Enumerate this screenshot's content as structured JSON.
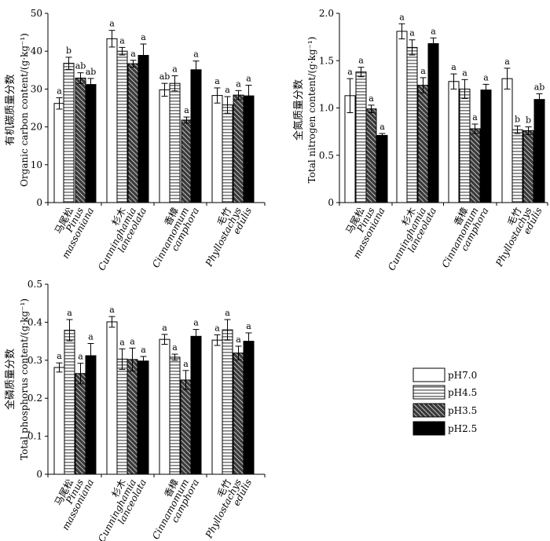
{
  "legend": [
    {
      "label": "pH7.0"
    },
    {
      "label": "pH4.5"
    },
    {
      "label": "pH3.5"
    },
    {
      "label": "pH2.5"
    }
  ],
  "colors": {
    "bar_stroke": "#000000",
    "hatch": "#222222",
    "ph25_fill": "#000000",
    "ph35_fill": "#555555",
    "ph45_fill": "#999999"
  },
  "categories": [
    {
      "cn": "马尾松",
      "en1": "Pinus",
      "en2": "massoniana"
    },
    {
      "cn": "杉木",
      "en1": "Cunninghamia",
      "en2": "lanceolata"
    },
    {
      "cn": "香樟",
      "en1": "Cinnamomum",
      "en2": "camphora"
    },
    {
      "cn": "毛竹",
      "en1": "Phyllostachys",
      "en2": "edulis"
    }
  ],
  "chart_data": [
    {
      "type": "bar",
      "title": "",
      "ylabel_cn": "有机碳质量分数",
      "ylabel_en": "Organic carbon content/(g·kg⁻¹)",
      "ylim": [
        0,
        50
      ],
      "yticks": [
        0,
        10,
        20,
        30,
        40,
        50
      ],
      "ytick_labels": [
        "0",
        "10",
        "20",
        "30",
        "40",
        "50"
      ],
      "categories": [
        "马尾松 Pinus massoniana",
        "杉木 Cunninghamia lanceolata",
        "香樟 Cinnamomum camphora",
        "毛竹 Phyllostachys edulis"
      ],
      "series": [
        {
          "name": "pH7.0",
          "values": [
            26.2,
            43.3,
            29.8,
            28.3
          ],
          "errors": [
            1.5,
            2.2,
            1.7,
            2.0
          ],
          "sig": [
            "a",
            "a",
            "ab",
            "a"
          ]
        },
        {
          "name": "pH4.5",
          "values": [
            36.8,
            40.0,
            31.5,
            25.8
          ],
          "errors": [
            1.6,
            1.0,
            2.0,
            2.2
          ],
          "sig": [
            "b",
            "a",
            "a",
            "a"
          ]
        },
        {
          "name": "pH3.5",
          "values": [
            32.9,
            36.7,
            21.8,
            28.4
          ],
          "errors": [
            1.4,
            0.9,
            0.8,
            1.2
          ],
          "sig": [
            "ab",
            "a",
            "a",
            "a"
          ]
        },
        {
          "name": "pH2.5",
          "values": [
            31.2,
            38.9,
            35.1,
            28.2
          ],
          "errors": [
            1.6,
            3.0,
            2.3,
            2.8
          ],
          "sig": [
            "ab",
            "a",
            "a",
            "a"
          ]
        }
      ]
    },
    {
      "type": "bar",
      "title": "",
      "ylabel_cn": "全氮质量分数",
      "ylabel_en": "Total nitrogen content/(g·kg⁻¹)",
      "ylim": [
        0,
        2.0
      ],
      "yticks": [
        0,
        0.5,
        1.0,
        1.5,
        2.0
      ],
      "ytick_labels": [
        "0",
        "0.5",
        "1.0",
        "1.5",
        "2.0"
      ],
      "categories": [
        "马尾松 Pinus massoniana",
        "杉木 Cunninghamia lanceolata",
        "香樟 Cinnamomum camphora",
        "毛竹 Phyllostachys edulis"
      ],
      "series": [
        {
          "name": "pH7.0",
          "values": [
            1.13,
            1.81,
            1.28,
            1.31
          ],
          "errors": [
            0.18,
            0.08,
            0.08,
            0.11
          ],
          "sig": [
            "a",
            "a",
            "a",
            "a"
          ]
        },
        {
          "name": "pH4.5",
          "values": [
            1.38,
            1.64,
            1.2,
            0.77
          ],
          "errors": [
            0.05,
            0.08,
            0.1,
            0.04
          ],
          "sig": [
            "a",
            "a",
            "a",
            "b"
          ]
        },
        {
          "name": "pH3.5",
          "values": [
            0.99,
            1.24,
            0.78,
            0.76
          ],
          "errors": [
            0.04,
            0.08,
            0.05,
            0.04
          ],
          "sig": [
            "a",
            "a",
            "a",
            "b"
          ]
        },
        {
          "name": "pH2.5",
          "values": [
            0.71,
            1.68,
            1.19,
            1.09
          ],
          "errors": [
            0.02,
            0.06,
            0.06,
            0.06
          ],
          "sig": [
            "a",
            "a",
            "a",
            "ab"
          ]
        }
      ]
    },
    {
      "type": "bar",
      "title": "",
      "ylabel_cn": "全磷质量分数",
      "ylabel_en": "Total phosphorus content/(g·kg⁻¹)",
      "ylim": [
        0,
        0.5
      ],
      "yticks": [
        0,
        0.1,
        0.2,
        0.3,
        0.4,
        0.5
      ],
      "ytick_labels": [
        "0",
        "0.1",
        "0.2",
        "0.3",
        "0.4",
        "0.5"
      ],
      "categories": [
        "马尾松 Pinus massoniana",
        "杉木 Cunninghamia lanceolata",
        "香樟 Cinnamomum camphora",
        "毛竹 Phyllostachys edulis"
      ],
      "series": [
        {
          "name": "pH7.0",
          "values": [
            0.281,
            0.401,
            0.355,
            0.353
          ],
          "errors": [
            0.012,
            0.014,
            0.013,
            0.014
          ],
          "sig": [
            "a",
            "a",
            "a",
            "a"
          ]
        },
        {
          "name": "pH4.5",
          "values": [
            0.379,
            0.303,
            0.308,
            0.38
          ],
          "errors": [
            0.028,
            0.027,
            0.008,
            0.027
          ],
          "sig": [
            "a",
            "a",
            "a",
            "a"
          ]
        },
        {
          "name": "pH3.5",
          "values": [
            0.265,
            0.302,
            0.248,
            0.319
          ],
          "errors": [
            0.027,
            0.03,
            0.025,
            0.018
          ],
          "sig": [
            "a",
            "a",
            "a",
            "a"
          ]
        },
        {
          "name": "pH2.5",
          "values": [
            0.312,
            0.298,
            0.363,
            0.35
          ],
          "errors": [
            0.032,
            0.012,
            0.018,
            0.022
          ],
          "sig": [
            "a",
            "a",
            "a",
            "a"
          ]
        }
      ]
    }
  ]
}
